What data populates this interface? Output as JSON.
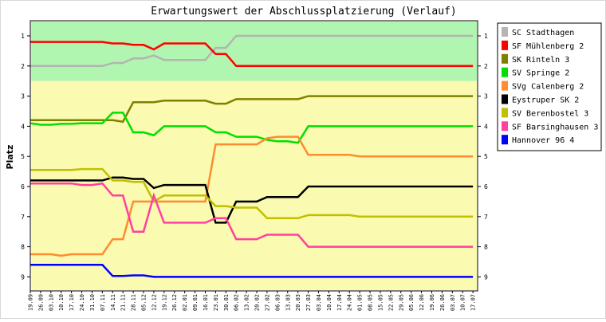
{
  "chart_data": {
    "type": "line",
    "title": "Erwartungswert der Abschlussplatzierung (Verlauf)",
    "ylabel": "Platz",
    "xlabel": "",
    "ylim": [
      1,
      9
    ],
    "y_inverted": true,
    "yticks": [
      "1",
      "2",
      "3",
      "4",
      "5",
      "6",
      "7",
      "8",
      "9"
    ],
    "grid": false,
    "legend_position": "right",
    "bands": [
      {
        "from": 0.5,
        "to": 2.5,
        "color": "#b0f5b0"
      },
      {
        "from": 2.5,
        "to": 9.5,
        "color": "#fafab0"
      }
    ],
    "x": [
      "19.09",
      "26.09",
      "03.10",
      "10.10",
      "17.10",
      "24.10",
      "31.10",
      "07.11",
      "14.11",
      "21.11",
      "28.11",
      "05.12",
      "12.12",
      "19.12",
      "26.12",
      "02.01",
      "09.01",
      "16.01",
      "23.01",
      "30.01",
      "06.02",
      "13.02",
      "20.02",
      "27.02",
      "06.03",
      "13.03",
      "20.03",
      "27.03",
      "03.04",
      "10.04",
      "17.04",
      "24.04",
      "01.05",
      "08.05",
      "15.05",
      "22.05",
      "29.05",
      "05.06",
      "12.06",
      "19.06",
      "26.06",
      "03.07",
      "10.07",
      "17.07"
    ],
    "series": [
      {
        "name": "SC Stadthagen",
        "color": "#b4b4b4",
        "values": [
          2.0,
          2.0,
          2.0,
          2.0,
          2.0,
          2.0,
          2.0,
          2.0,
          1.9,
          1.9,
          1.75,
          1.75,
          1.65,
          1.8,
          1.8,
          1.8,
          1.8,
          1.8,
          1.4,
          1.4,
          1.0,
          1.0,
          1.0,
          1.0,
          1.0,
          1.0,
          1.0,
          1.0,
          1.0,
          1.0,
          1.0,
          1.0,
          1.0,
          1.0,
          1.0,
          1.0,
          1.0,
          1.0,
          1.0,
          1.0,
          1.0,
          1.0,
          1.0,
          1.0
        ]
      },
      {
        "name": "SF Mühlenberg 2",
        "color": "#ff0000",
        "values": [
          1.2,
          1.2,
          1.2,
          1.2,
          1.2,
          1.2,
          1.2,
          1.2,
          1.25,
          1.25,
          1.3,
          1.3,
          1.45,
          1.25,
          1.25,
          1.25,
          1.25,
          1.25,
          1.6,
          1.6,
          2.0,
          2.0,
          2.0,
          2.0,
          2.0,
          2.0,
          2.0,
          2.0,
          2.0,
          2.0,
          2.0,
          2.0,
          2.0,
          2.0,
          2.0,
          2.0,
          2.0,
          2.0,
          2.0,
          2.0,
          2.0,
          2.0,
          2.0,
          2.0
        ]
      },
      {
        "name": "SK Rinteln 3",
        "color": "#808000",
        "values": [
          3.8,
          3.8,
          3.8,
          3.8,
          3.8,
          3.8,
          3.8,
          3.8,
          3.8,
          3.85,
          3.2,
          3.2,
          3.2,
          3.15,
          3.15,
          3.15,
          3.15,
          3.15,
          3.25,
          3.25,
          3.1,
          3.1,
          3.1,
          3.1,
          3.1,
          3.1,
          3.1,
          3.0,
          3.0,
          3.0,
          3.0,
          3.0,
          3.0,
          3.0,
          3.0,
          3.0,
          3.0,
          3.0,
          3.0,
          3.0,
          3.0,
          3.0,
          3.0,
          3.0
        ]
      },
      {
        "name": "SV Springe 2",
        "color": "#00e000",
        "values": [
          3.9,
          3.95,
          3.95,
          3.92,
          3.92,
          3.9,
          3.9,
          3.9,
          3.55,
          3.55,
          4.2,
          4.2,
          4.3,
          4.0,
          4.0,
          4.0,
          4.0,
          4.0,
          4.2,
          4.2,
          4.35,
          4.35,
          4.35,
          4.45,
          4.5,
          4.5,
          4.55,
          4.0,
          4.0,
          4.0,
          4.0,
          4.0,
          4.0,
          4.0,
          4.0,
          4.0,
          4.0,
          4.0,
          4.0,
          4.0,
          4.0,
          4.0,
          4.0,
          4.0
        ]
      },
      {
        "name": "SVg Calenberg 2",
        "color": "#ff8c30",
        "values": [
          8.25,
          8.25,
          8.25,
          8.3,
          8.25,
          8.25,
          8.25,
          8.25,
          7.75,
          7.75,
          6.5,
          6.5,
          6.5,
          6.5,
          6.5,
          6.5,
          6.5,
          6.5,
          4.6,
          4.6,
          4.6,
          4.6,
          4.6,
          4.4,
          4.35,
          4.35,
          4.35,
          4.95,
          4.95,
          4.95,
          4.95,
          4.95,
          5.0,
          5.0,
          5.0,
          5.0,
          5.0,
          5.0,
          5.0,
          5.0,
          5.0,
          5.0,
          5.0,
          5.0
        ]
      },
      {
        "name": "Eystruper SK 2",
        "color": "#000000",
        "values": [
          5.8,
          5.8,
          5.8,
          5.8,
          5.8,
          5.8,
          5.8,
          5.8,
          5.7,
          5.7,
          5.75,
          5.75,
          6.05,
          5.95,
          5.95,
          5.95,
          5.95,
          5.95,
          7.2,
          7.2,
          6.5,
          6.5,
          6.5,
          6.35,
          6.35,
          6.35,
          6.35,
          6.0,
          6.0,
          6.0,
          6.0,
          6.0,
          6.0,
          6.0,
          6.0,
          6.0,
          6.0,
          6.0,
          6.0,
          6.0,
          6.0,
          6.0,
          6.0,
          6.0
        ]
      },
      {
        "name": "SV Berenbostel 3",
        "color": "#c0c000",
        "values": [
          5.45,
          5.45,
          5.45,
          5.45,
          5.45,
          5.42,
          5.42,
          5.42,
          5.8,
          5.8,
          5.85,
          5.85,
          6.5,
          6.3,
          6.3,
          6.3,
          6.3,
          6.3,
          6.65,
          6.65,
          6.7,
          6.7,
          6.7,
          7.05,
          7.05,
          7.05,
          7.05,
          6.95,
          6.95,
          6.95,
          6.95,
          6.95,
          7.0,
          7.0,
          7.0,
          7.0,
          7.0,
          7.0,
          7.0,
          7.0,
          7.0,
          7.0,
          7.0,
          7.0
        ]
      },
      {
        "name": "SF Barsinghausen 3",
        "color": "#ff40a0",
        "values": [
          5.9,
          5.9,
          5.9,
          5.9,
          5.9,
          5.95,
          5.95,
          5.9,
          6.3,
          6.3,
          7.5,
          7.5,
          6.3,
          7.2,
          7.2,
          7.2,
          7.2,
          7.2,
          7.05,
          7.05,
          7.75,
          7.75,
          7.75,
          7.6,
          7.6,
          7.6,
          7.6,
          8.0,
          8.0,
          8.0,
          8.0,
          8.0,
          8.0,
          8.0,
          8.0,
          8.0,
          8.0,
          8.0,
          8.0,
          8.0,
          8.0,
          8.0,
          8.0,
          8.0
        ]
      },
      {
        "name": "Hannover 96 4",
        "color": "#0000ff",
        "values": [
          8.6,
          8.6,
          8.6,
          8.6,
          8.6,
          8.6,
          8.6,
          8.6,
          8.97,
          8.97,
          8.95,
          8.95,
          9.0,
          9.0,
          9.0,
          9.0,
          9.0,
          9.0,
          9.0,
          9.0,
          9.0,
          9.0,
          9.0,
          9.0,
          9.0,
          9.0,
          9.0,
          9.0,
          9.0,
          9.0,
          9.0,
          9.0,
          9.0,
          9.0,
          9.0,
          9.0,
          9.0,
          9.0,
          9.0,
          9.0,
          9.0,
          9.0,
          9.0,
          9.0
        ]
      }
    ]
  }
}
